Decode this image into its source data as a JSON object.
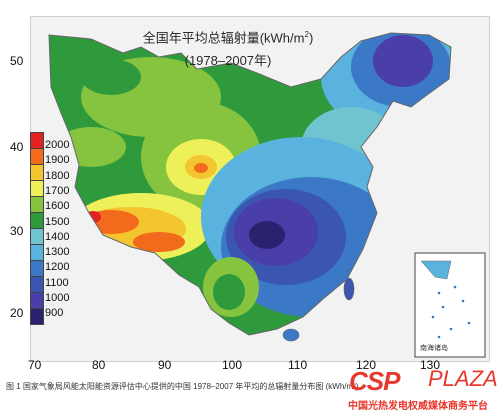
{
  "map": {
    "title": "全国年平均总辐射量(kWh/m",
    "title_sup": "2",
    "title_close": ")",
    "subtitle": "(1978–2007年)",
    "legend": [
      {
        "label": "2000",
        "color": "#e02222"
      },
      {
        "label": "1900",
        "color": "#f26a1b"
      },
      {
        "label": "1800",
        "color": "#f3c630"
      },
      {
        "label": "1700",
        "color": "#eef05a"
      },
      {
        "label": "1600",
        "color": "#86c440"
      },
      {
        "label": "1500",
        "color": "#2f9a3c"
      },
      {
        "label": "1400",
        "color": "#6fc4cf"
      },
      {
        "label": "1300",
        "color": "#5ab3de"
      },
      {
        "label": "1200",
        "color": "#3b79c6"
      },
      {
        "label": "1100",
        "color": "#3a56b0"
      },
      {
        "label": "1000",
        "color": "#4a3ea8"
      },
      {
        "label": "900",
        "color": "#2a226f"
      }
    ],
    "latitudes": [
      "50",
      "40",
      "30",
      "20"
    ],
    "longitudes": [
      "70",
      "80",
      "90",
      "100",
      "110",
      "120",
      "130"
    ],
    "inset_label": "南海诸岛"
  },
  "caption": "图 1 国家气象局风能太阳能资源评估中心提供的中国 1978–2007 年平均的总辐射量分布图 (kWh/m²)",
  "watermark": {
    "logo": "CSP",
    "logo2": "PLAZA",
    "tagline": "中国光热发电权威媒体商务平台"
  }
}
